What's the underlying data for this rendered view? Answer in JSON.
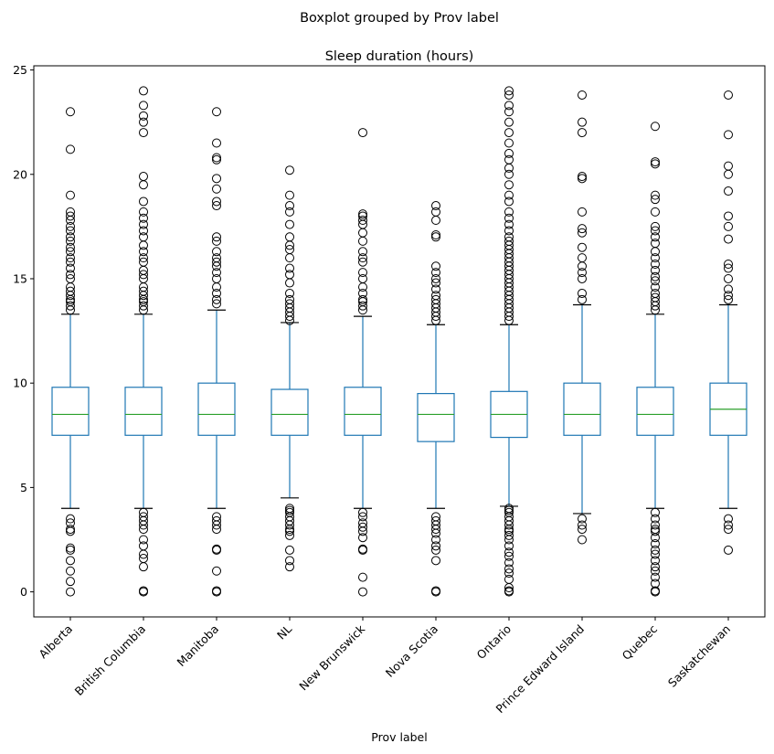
{
  "chart_data": {
    "type": "boxplot",
    "suptitle": "Boxplot grouped by Prov label",
    "title": "Sleep duration (hours)",
    "xlabel": "Prov label",
    "ylabel": "",
    "ylim": [
      -1.2,
      25.2
    ],
    "yticks": [
      0,
      5,
      10,
      15,
      20,
      25
    ],
    "grid": false,
    "colors": {
      "box": "#1f77b4",
      "median": "#2ca02c",
      "flier": "#000000"
    },
    "categories": [
      "Alberta",
      "British Columbia",
      "Manitoba",
      "NL",
      "New Brunswick",
      "Nova Scotia",
      "Ontario",
      "Prince Edward Island",
      "Quebec",
      "Saskatchewan"
    ],
    "boxes": [
      {
        "label": "Alberta",
        "whislo": 4.0,
        "q1": 7.5,
        "med": 8.5,
        "q3": 9.8,
        "whishi": 13.3,
        "fliers": [
          0,
          0.5,
          1,
          1.5,
          2,
          2.1,
          2.9,
          3,
          3.3,
          3.5,
          13.5,
          13.7,
          13.9,
          14,
          14.2,
          14.4,
          14.6,
          15,
          15.2,
          15.5,
          15.8,
          16,
          16.3,
          16.5,
          16.8,
          17,
          17.3,
          17.5,
          17.8,
          18,
          18.2,
          19,
          21.2,
          23
        ]
      },
      {
        "label": "British Columbia",
        "whislo": 4.0,
        "q1": 7.5,
        "med": 8.5,
        "q3": 9.8,
        "whishi": 13.3,
        "fliers": [
          0,
          0.05,
          1.2,
          1.6,
          1.8,
          2.2,
          2.5,
          3,
          3.2,
          3.4,
          3.6,
          3.8,
          13.5,
          13.7,
          13.9,
          14,
          14.2,
          14.4,
          14.6,
          15,
          15.2,
          15.4,
          15.8,
          16,
          16.3,
          16.6,
          17,
          17.3,
          17.6,
          17.9,
          18.2,
          18.7,
          19.5,
          19.9,
          22,
          22.5,
          22.8,
          23.3,
          24
        ]
      },
      {
        "label": "Manitoba",
        "whislo": 4.0,
        "q1": 7.5,
        "med": 8.5,
        "q3": 10.0,
        "whishi": 13.5,
        "fliers": [
          0,
          0.05,
          1,
          2,
          2.05,
          3,
          3.2,
          3.4,
          3.6,
          13.8,
          14,
          14.3,
          14.6,
          15,
          15.3,
          15.6,
          15.8,
          16,
          16.3,
          16.8,
          17,
          18.5,
          18.7,
          19.3,
          19.8,
          20.7,
          20.8,
          21.5,
          23
        ]
      },
      {
        "label": "NL",
        "whislo": 4.5,
        "q1": 7.5,
        "med": 8.5,
        "q3": 9.7,
        "whishi": 12.9,
        "fliers": [
          1.2,
          1.5,
          2,
          2.7,
          2.9,
          3,
          3.2,
          3.4,
          3.6,
          3.8,
          3.9,
          4,
          13,
          13.2,
          13.4,
          13.6,
          13.8,
          14,
          14.3,
          14.8,
          15.2,
          15.5,
          16,
          16.4,
          16.6,
          17,
          17.6,
          18.2,
          18.5,
          19,
          20.2
        ]
      },
      {
        "label": "New Brunswick",
        "whislo": 4.0,
        "q1": 7.5,
        "med": 8.5,
        "q3": 9.8,
        "whishi": 13.2,
        "fliers": [
          0,
          0.7,
          2,
          2.05,
          2.6,
          2.9,
          3.1,
          3.3,
          3.6,
          3.8,
          13.5,
          13.7,
          13.9,
          14,
          14.3,
          14.6,
          15,
          15.3,
          15.8,
          16,
          16.3,
          16.8,
          17.2,
          17.6,
          17.8,
          18,
          18.1,
          22
        ]
      },
      {
        "label": "Nova Scotia",
        "whislo": 4.0,
        "q1": 7.2,
        "med": 8.5,
        "q3": 9.5,
        "whishi": 12.8,
        "fliers": [
          0,
          0.05,
          1.5,
          2,
          2.2,
          2.5,
          2.8,
          3,
          3.2,
          3.4,
          3.6,
          13,
          13.2,
          13.4,
          13.6,
          13.8,
          14,
          14.2,
          14.5,
          14.8,
          15,
          15.3,
          15.6,
          17,
          17.1,
          17.8,
          18.2,
          18.5
        ]
      },
      {
        "label": "Ontario",
        "whislo": 4.1,
        "q1": 7.4,
        "med": 8.5,
        "q3": 9.6,
        "whishi": 12.8,
        "fliers": [
          0,
          0.05,
          0.2,
          0.6,
          0.9,
          1.1,
          1.4,
          1.7,
          1.9,
          2.2,
          2.5,
          2.7,
          2.9,
          3,
          3.2,
          3.4,
          3.6,
          3.8,
          3.9,
          4,
          13,
          13.2,
          13.4,
          13.6,
          13.8,
          14,
          14.2,
          14.4,
          14.6,
          14.8,
          15,
          15.2,
          15.4,
          15.6,
          15.8,
          16,
          16.2,
          16.4,
          16.6,
          16.8,
          17,
          17.3,
          17.6,
          17.9,
          18.2,
          18.7,
          19,
          19.5,
          20,
          20.3,
          20.7,
          21,
          21.5,
          22,
          22.5,
          23,
          23.3,
          23.8,
          24
        ]
      },
      {
        "label": "Prince Edward Island",
        "whislo": 3.75,
        "q1": 7.5,
        "med": 8.5,
        "q3": 10.0,
        "whishi": 13.75,
        "fliers": [
          2.5,
          3,
          3.2,
          3.5,
          14,
          14.3,
          15,
          15.3,
          15.6,
          16,
          16.5,
          17.2,
          17.4,
          18.2,
          19.8,
          19.9,
          22,
          22.5,
          23.8
        ]
      },
      {
        "label": "Quebec",
        "whislo": 4.0,
        "q1": 7.5,
        "med": 8.5,
        "q3": 9.8,
        "whishi": 13.3,
        "fliers": [
          0,
          0.05,
          0.4,
          0.7,
          1,
          1.2,
          1.5,
          1.8,
          2,
          2.3,
          2.6,
          2.9,
          3,
          3.2,
          3.5,
          3.8,
          13.5,
          13.7,
          13.9,
          14.1,
          14.3,
          14.6,
          14.9,
          15.1,
          15.4,
          15.7,
          16,
          16.3,
          16.7,
          17,
          17.3,
          17.5,
          18.2,
          18.8,
          19,
          20.5,
          20.6,
          22.3
        ]
      },
      {
        "label": "Saskatchewan",
        "whislo": 4.0,
        "q1": 7.5,
        "med": 8.75,
        "q3": 10.0,
        "whishi": 13.75,
        "fliers": [
          2,
          3,
          3.2,
          3.5,
          14,
          14.2,
          14.5,
          15,
          15.5,
          15.7,
          16.9,
          17.5,
          18,
          19.2,
          20,
          20.4,
          21.9,
          23.8
        ]
      }
    ]
  }
}
